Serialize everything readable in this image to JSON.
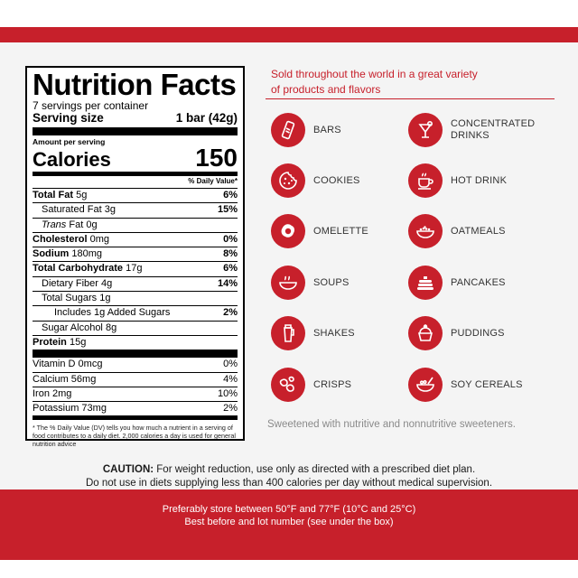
{
  "nutrition": {
    "title": "Nutrition Facts",
    "servings": "7 servings per container",
    "serving_size_label": "Serving size",
    "serving_size_value": "1 bar (42g)",
    "amount_per_serving": "Amount per serving",
    "calories_label": "Calories",
    "calories_value": "150",
    "dv_header": "% Daily Value*",
    "rows": [
      {
        "label": "Total Fat",
        "amount": "5g",
        "dv": "6%"
      },
      {
        "label": "Saturated Fat",
        "amount": "3g",
        "dv": "15%"
      },
      {
        "label": "Trans",
        "label_suffix": "Fat",
        "amount": "0g",
        "dv": ""
      },
      {
        "label": "Cholesterol",
        "amount": "0mg",
        "dv": "0%"
      },
      {
        "label": "Sodium",
        "amount": "180mg",
        "dv": "8%"
      },
      {
        "label": "Total Carbohydrate",
        "amount": "17g",
        "dv": "6%"
      },
      {
        "label": "Dietary Fiber",
        "amount": "4g",
        "dv": "14%"
      },
      {
        "label": "Total Sugars",
        "amount": "1g",
        "dv": ""
      },
      {
        "label": "Includes 1g Added Sugars",
        "amount": "",
        "dv": "2%"
      },
      {
        "label": "Sugar Alcohol",
        "amount": "8g",
        "dv": ""
      },
      {
        "label": "Protein",
        "amount": "15g",
        "dv": ""
      },
      {
        "label": "Vitamin D",
        "amount": "0mcg",
        "dv": "0%"
      },
      {
        "label": "Calcium",
        "amount": "56mg",
        "dv": "4%"
      },
      {
        "label": "Iron",
        "amount": "2mg",
        "dv": "10%"
      },
      {
        "label": "Potassium",
        "amount": "73mg",
        "dv": "2%"
      }
    ],
    "footnote": "* The % Daily Value (DV) tells you how much a nutrient in a serving of food contributes to a daily diet. 2,000 calories a day is used for general nutrition advice"
  },
  "products": {
    "headline_line1": "Sold throughout the world in a great variety",
    "headline_line2": "of products and flavors",
    "items": [
      {
        "label": "BARS",
        "icon": "bar-icon"
      },
      {
        "label_line1": "CONCENTRATED",
        "label_line2": "DRINKS",
        "icon": "cocktail-icon"
      },
      {
        "label": "COOKIES",
        "icon": "cookie-icon"
      },
      {
        "label": "HOT DRINK",
        "icon": "coffee-cup-icon"
      },
      {
        "label": "OMELETTE",
        "icon": "fried-egg-icon"
      },
      {
        "label": "OATMEALS",
        "icon": "oatmeal-bowl-icon"
      },
      {
        "label": "SOUPS",
        "icon": "soup-bowl-icon"
      },
      {
        "label": "PANCAKES",
        "icon": "pancake-stack-icon"
      },
      {
        "label": "SHAKES",
        "icon": "shaker-bottle-icon"
      },
      {
        "label": "PUDDINGS",
        "icon": "pudding-icon"
      },
      {
        "label": "CRISPS",
        "icon": "crisps-icon"
      },
      {
        "label": "SOY CEREALS",
        "icon": "cereal-bowl-icon"
      }
    ],
    "sweetener_note": "Sweetened with nutritive and nonnutritive sweeteners."
  },
  "caution": {
    "heading": "CAUTION:",
    "line1_rest": "For weight reduction, use only as directed with a prescribed diet plan.",
    "line2": "Do not use in diets supplying less than 400 calories per day without medical supervision."
  },
  "storage": {
    "line1": "Preferably store between 50°F and 77°F (10°C and 25°C)",
    "line2": "Best before and lot number (see under the box)"
  },
  "colors": {
    "brand_red": "#c7202b",
    "panel_gray": "#f4f4f4"
  }
}
